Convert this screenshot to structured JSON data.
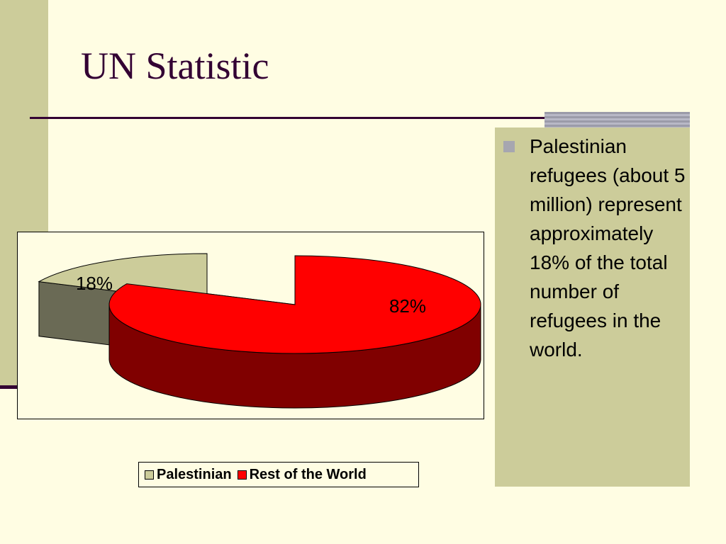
{
  "slide": {
    "title": "UN Statistic"
  },
  "bullet": {
    "text": "Palestinian refugees (about 5 million) represent approximately 18% of the total number of refugees in the world."
  },
  "colors": {
    "background": "#fffde3",
    "accent_band": "#cccc9a",
    "title": "#330033",
    "palestinian_top": "#cccc9a",
    "palestinian_side": "#6a6a55",
    "world_top": "#ff0000",
    "world_side": "#800000"
  },
  "chart_data": {
    "type": "pie",
    "style": "3d-exploded",
    "title": "",
    "categories": [
      "Palestinian",
      "Rest of the World"
    ],
    "values": [
      18,
      82
    ],
    "data_labels": [
      "18%",
      "82%"
    ],
    "legend_position": "bottom",
    "series": [
      {
        "name": "Palestinian",
        "value": 18,
        "label": "18%",
        "color": "#cccc9a"
      },
      {
        "name": "Rest of the World",
        "value": 82,
        "label": "82%",
        "color": "#ff0000"
      }
    ]
  }
}
